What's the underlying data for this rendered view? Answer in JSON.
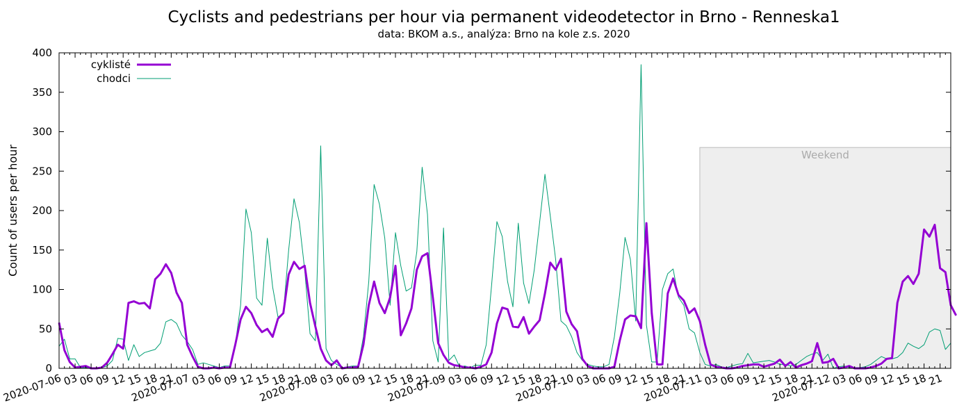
{
  "chart_data": {
    "type": "line",
    "title": "Cyclists and pedestrians per hour via permanent videodetector in Brno - Renneska1",
    "subtitle": "data: BKOM a.s., analýza: Brno na kole z.s. 2020",
    "ylabel": "Count of users per hour",
    "xlabel": "",
    "ylim": [
      0,
      400
    ],
    "yticks": [
      0,
      50,
      100,
      150,
      200,
      250,
      300,
      350,
      400
    ],
    "x_start": "2020-07-06 00:00",
    "x_step": "1 hour",
    "x_tick_labels": [
      "2020-07-06",
      "03",
      "06",
      "09",
      "12",
      "15",
      "18",
      "21",
      "2020-07-07",
      "03",
      "06",
      "09",
      "12",
      "15",
      "18",
      "21",
      "2020-07-08",
      "03",
      "06",
      "09",
      "12",
      "15",
      "18",
      "21",
      "2020-07-09",
      "03",
      "06",
      "09",
      "12",
      "15",
      "18",
      "21",
      "2020-07-10",
      "03",
      "06",
      "09",
      "12",
      "15",
      "18",
      "21",
      "2020-07-11",
      "03",
      "06",
      "09",
      "12",
      "15",
      "18",
      "21",
      "2020-07-12",
      "03",
      "06",
      "09",
      "12",
      "15",
      "18",
      "21"
    ],
    "weekend_label": "Weekend",
    "weekend_range": [
      "2020-07-11 00:00",
      "2020-07-12 23:00"
    ],
    "weekend_top": 280,
    "legend_position": "top-left",
    "series": [
      {
        "name": "cyklisté",
        "color": "#9400d3",
        "values": [
          58,
          23,
          8,
          1,
          2,
          3,
          0,
          0,
          1,
          7,
          18,
          30,
          25,
          83,
          85,
          82,
          83,
          76,
          113,
          120,
          132,
          121,
          96,
          83,
          30,
          15,
          2,
          0,
          0,
          1,
          0,
          1,
          1,
          30,
          62,
          78,
          70,
          55,
          46,
          50,
          40,
          63,
          70,
          119,
          135,
          126,
          130,
          83,
          53,
          25,
          10,
          4,
          10,
          0,
          1,
          1,
          2,
          30,
          80,
          110,
          83,
          70,
          90,
          130,
          42,
          57,
          76,
          125,
          142,
          146,
          90,
          32,
          17,
          7,
          4,
          3,
          1,
          1,
          0,
          2,
          5,
          20,
          57,
          77,
          75,
          53,
          52,
          65,
          44,
          53,
          61,
          95,
          134,
          125,
          139,
          72,
          56,
          47,
          12,
          3,
          0,
          0,
          0,
          0,
          2,
          35,
          62,
          67,
          66,
          51,
          184,
          70,
          5,
          5,
          95,
          114,
          93,
          86,
          70,
          76,
          60,
          30,
          5,
          2,
          1,
          0,
          0,
          1,
          3,
          4,
          5,
          5,
          2,
          4,
          6,
          11,
          3,
          8,
          1,
          4,
          6,
          9,
          32,
          7,
          8,
          12,
          0,
          1,
          3,
          0,
          0,
          0,
          1,
          3,
          6,
          12,
          13,
          83,
          110,
          117,
          107,
          120,
          176,
          167,
          182,
          127,
          122,
          80,
          67
        ]
      },
      {
        "name": "chodci",
        "color": "#009e73",
        "values": [
          28,
          37,
          12,
          12,
          1,
          1,
          0,
          0,
          1,
          3,
          10,
          38,
          37,
          10,
          30,
          15,
          20,
          22,
          24,
          32,
          59,
          62,
          57,
          42,
          34,
          24,
          5,
          7,
          5,
          3,
          1,
          3,
          3,
          30,
          80,
          202,
          172,
          89,
          80,
          165,
          103,
          65,
          70,
          150,
          215,
          185,
          125,
          44,
          35,
          282,
          25,
          10,
          5,
          1,
          2,
          3,
          3,
          40,
          110,
          233,
          208,
          165,
          80,
          172,
          130,
          98,
          102,
          148,
          255,
          195,
          35,
          8,
          178,
          10,
          17,
          2,
          3,
          1,
          4,
          4,
          30,
          105,
          186,
          167,
          110,
          78,
          184,
          108,
          82,
          125,
          185,
          246,
          193,
          138,
          60,
          54,
          40,
          20,
          10,
          5,
          3,
          2,
          2,
          5,
          40,
          95,
          166,
          138,
          60,
          385,
          55,
          8,
          8,
          100,
          120,
          126,
          90,
          80,
          50,
          45,
          20,
          5,
          3,
          5,
          2,
          1,
          3,
          5,
          6,
          19,
          7,
          8,
          9,
          10,
          8,
          5,
          5,
          3,
          5,
          10,
          15,
          18,
          20,
          10,
          18,
          0,
          2,
          3,
          1,
          1,
          1,
          2,
          5,
          10,
          15,
          12,
          12,
          14,
          20,
          32,
          28,
          25,
          30,
          46,
          50,
          48,
          24,
          32
        ]
      }
    ]
  }
}
